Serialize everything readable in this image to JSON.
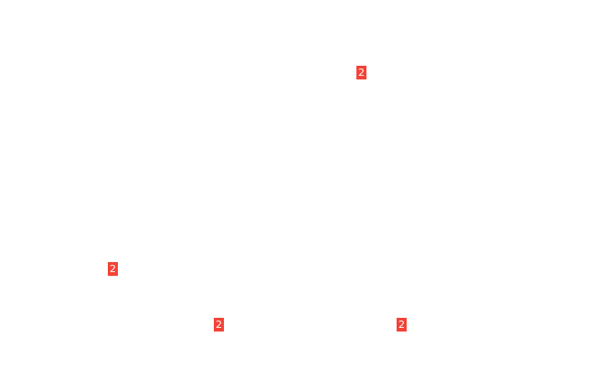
{
  "badges": [
    {
      "label": "2"
    },
    {
      "label": "2"
    },
    {
      "label": "2"
    },
    {
      "label": "2"
    }
  ],
  "colors": {
    "badge": "#f44336",
    "background": "#ffffff"
  }
}
